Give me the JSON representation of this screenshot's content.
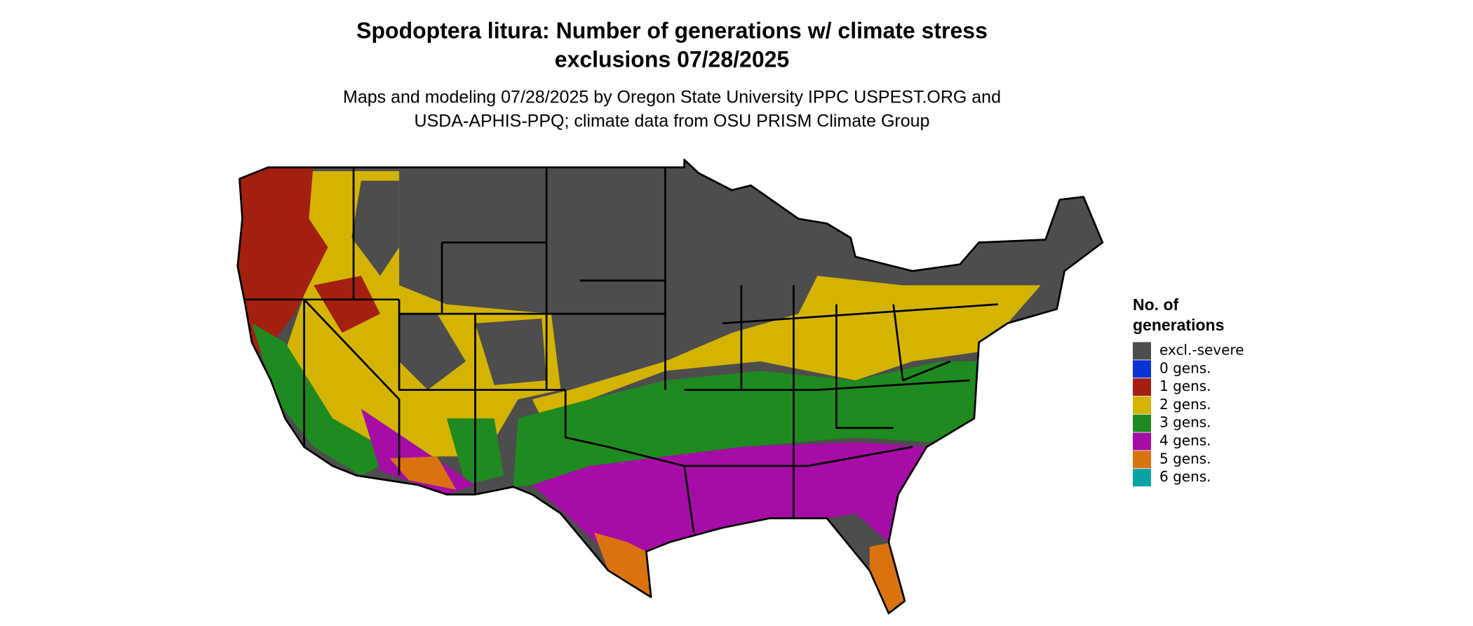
{
  "title": [
    "Spodoptera litura: Number of generations w/ climate stress",
    "exclusions 07/28/2025"
  ],
  "subtitle": [
    "Maps and modeling 07/28/2025 by Oregon State University IPPC USPEST.ORG and",
    "USDA-APHIS-PPQ; climate data from OSU PRISM Climate Group"
  ],
  "legend": {
    "title": [
      "No. of",
      "generations"
    ],
    "items": [
      {
        "label": "excl.-severe",
        "color": "#4d4d4d"
      },
      {
        "label": "0 gens.",
        "color": "#0a32d8"
      },
      {
        "label": "1 gens.",
        "color": "#a31f12"
      },
      {
        "label": "2 gens.",
        "color": "#d4b400"
      },
      {
        "label": "3 gens.",
        "color": "#1f8a1f"
      },
      {
        "label": "4 gens.",
        "color": "#a60ca6"
      },
      {
        "label": "5 gens.",
        "color": "#d9720f"
      },
      {
        "label": "6 gens.",
        "color": "#0aa3a3"
      }
    ]
  }
}
